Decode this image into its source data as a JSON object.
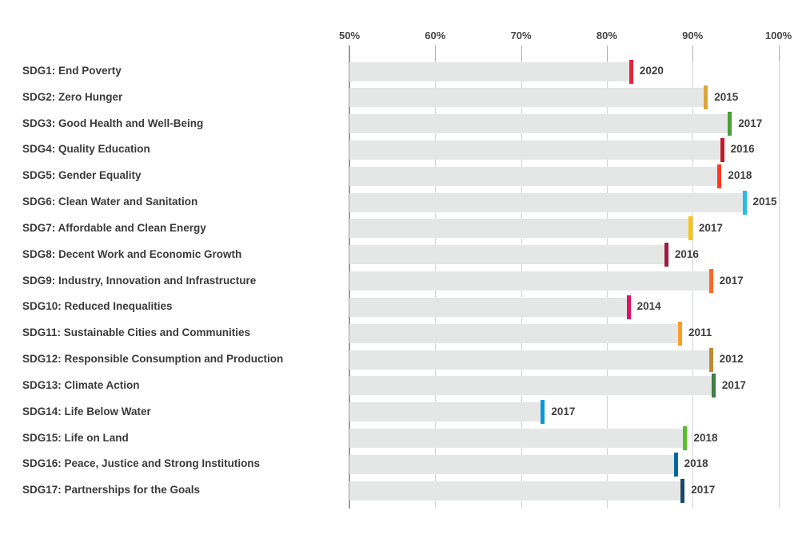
{
  "chart_data": {
    "type": "bar",
    "orientation": "horizontal",
    "title": "",
    "xlabel": "",
    "ylabel": "",
    "legend": "none",
    "grid": true,
    "axis": {
      "min": 50,
      "max": 100,
      "tick_values": [
        50,
        60,
        70,
        80,
        90,
        100
      ],
      "tick_labels": [
        "50%",
        "60%",
        "70%",
        "80%",
        "90%",
        "100%"
      ]
    },
    "value_unit": "%",
    "rows": [
      {
        "label": "SDG1: End Poverty",
        "value": 82.7,
        "year": "2020",
        "color": "#E5243B"
      },
      {
        "label": "SDG2: Zero Hunger",
        "value": 91.4,
        "year": "2015",
        "color": "#DDA63A"
      },
      {
        "label": "SDG3: Good Health and Well-Being",
        "value": 94.2,
        "year": "2017",
        "color": "#4C9F38"
      },
      {
        "label": "SDG4: Quality Education",
        "value": 93.3,
        "year": "2016",
        "color": "#C5192D"
      },
      {
        "label": "SDG5: Gender Equality",
        "value": 93.0,
        "year": "2018",
        "color": "#FF3A21"
      },
      {
        "label": "SDG6: Clean Water and Sanitation",
        "value": 95.9,
        "year": "2015",
        "color": "#26BDE2"
      },
      {
        "label": "SDG7: Affordable and Clean Energy",
        "value": 89.6,
        "year": "2017",
        "color": "#FCC30B"
      },
      {
        "label": "SDG8: Decent Work and Economic Growth",
        "value": 86.8,
        "year": "2016",
        "color": "#A21942"
      },
      {
        "label": "SDG9: Industry, Innovation and Infrastructure",
        "value": 92.0,
        "year": "2017",
        "color": "#FD6925"
      },
      {
        "label": "SDG10: Reduced Inequalities",
        "value": 82.4,
        "year": "2014",
        "color": "#DD1367"
      },
      {
        "label": "SDG11: Sustainable Cities and Communities",
        "value": 88.4,
        "year": "2011",
        "color": "#FD9D24"
      },
      {
        "label": "SDG12: Responsible Consumption and Production",
        "value": 92.0,
        "year": "2012",
        "color": "#BF8B2E"
      },
      {
        "label": "SDG13: Climate Action",
        "value": 92.3,
        "year": "2017",
        "color": "#3F7E44"
      },
      {
        "label": "SDG14: Life Below Water",
        "value": 72.4,
        "year": "2017",
        "color": "#0A97D9"
      },
      {
        "label": "SDG15: Life on Land",
        "value": 89.0,
        "year": "2018",
        "color": "#56C02B"
      },
      {
        "label": "SDG16: Peace, Justice and Strong Institutions",
        "value": 87.9,
        "year": "2018",
        "color": "#00689D"
      },
      {
        "label": "SDG17: Partnerships for the Goals",
        "value": 88.7,
        "year": "2017",
        "color": "#19486A"
      }
    ]
  },
  "colors": {
    "background": "#ffffff",
    "bar_fill": "#e5e7e7",
    "gridline": "#d2d4d3",
    "tick": "#aeb0af",
    "axis_line": "#9a9c9b",
    "text": "#3a3a3a"
  }
}
